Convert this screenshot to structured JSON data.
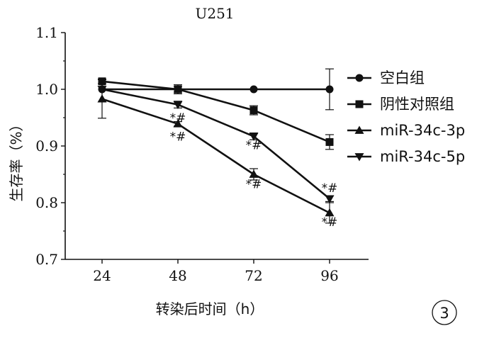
{
  "panel_label": "3",
  "chart_data": {
    "type": "line",
    "title": "U251",
    "xlabel": "转染后时间（h）",
    "ylabel": "生存率（%）",
    "categories": [
      "24",
      "48",
      "72",
      "96"
    ],
    "yticks": [
      "0.7",
      "0.8",
      "0.9",
      "1.0",
      "1.1"
    ],
    "ylim": [
      0.7,
      1.1
    ],
    "legend_position": "right",
    "series": [
      {
        "name": "空白组",
        "marker": "circle",
        "values": [
          1.0,
          1.0,
          1.0,
          1.0
        ],
        "errors": [
          0,
          0.005,
          0,
          0.036
        ]
      },
      {
        "name": "阴性对照组",
        "marker": "square",
        "values": [
          1.014,
          1.0,
          0.963,
          0.907
        ],
        "errors": [
          0.004,
          0.008,
          0.008,
          0.013
        ]
      },
      {
        "name": "miR-34c-3p",
        "marker": "triangle-up",
        "values": [
          0.983,
          0.939,
          0.85,
          0.782
        ],
        "errors": [
          0.034,
          0.004,
          0.01,
          0.018
        ]
      },
      {
        "name": "miR-34c-5p",
        "marker": "triangle-down",
        "values": [
          1.0,
          0.973,
          0.917,
          0.807
        ],
        "errors": [
          0,
          0.006,
          0.006,
          0.005
        ]
      }
    ],
    "annotations": [
      {
        "text": "*#",
        "x": "48",
        "y": 0.95
      },
      {
        "text": "*#",
        "x": "48",
        "y": 0.917
      },
      {
        "text": "*#",
        "x": "72",
        "y": 0.902
      },
      {
        "text": "*#",
        "x": "72",
        "y": 0.833
      },
      {
        "text": "*#",
        "x": "96",
        "y": 0.826
      },
      {
        "text": "*#",
        "x": "96",
        "y": 0.766
      }
    ]
  }
}
